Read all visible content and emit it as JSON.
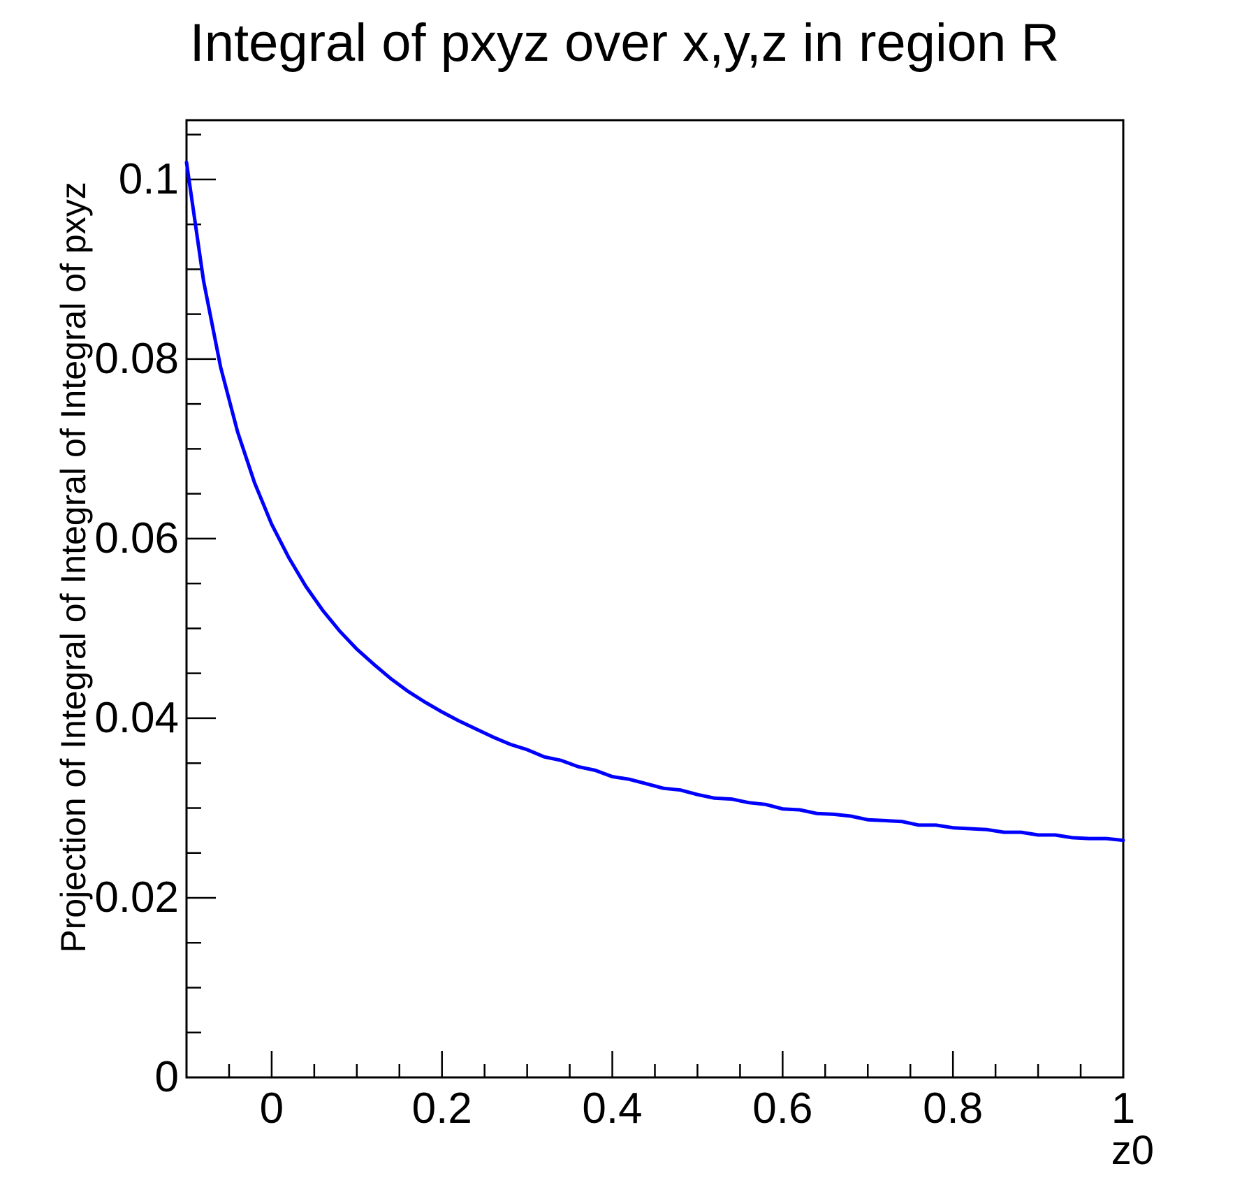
{
  "title": "Integral of pxyz over x,y,z in region R",
  "colors": {
    "line": "#0000ff",
    "axis": "#000000",
    "background": "#ffffff",
    "text": "#000000"
  },
  "axes": {
    "x": {
      "title": "z0",
      "range": [
        -0.1,
        1.0
      ],
      "minor_step": 0.05,
      "ticks": [
        {
          "value": 0.0,
          "label": "0"
        },
        {
          "value": 0.2,
          "label": "0.2"
        },
        {
          "value": 0.4,
          "label": "0.4"
        },
        {
          "value": 0.6,
          "label": "0.6"
        },
        {
          "value": 0.8,
          "label": "0.8"
        },
        {
          "value": 1.0,
          "label": "1"
        }
      ]
    },
    "y": {
      "title": "Projection of Integral of Integral of Integral of pxyz",
      "range": [
        0,
        0.1066
      ],
      "minor_step": 0.005,
      "ticks": [
        {
          "value": 0.0,
          "label": "0"
        },
        {
          "value": 0.02,
          "label": "0.02"
        },
        {
          "value": 0.04,
          "label": "0.04"
        },
        {
          "value": 0.06,
          "label": "0.06"
        },
        {
          "value": 0.08,
          "label": "0.08"
        },
        {
          "value": 0.1,
          "label": "0.1"
        }
      ]
    }
  },
  "chart_data": {
    "type": "line",
    "title": "Integral of pxyz over x,y,z in region R",
    "xlabel": "z0",
    "ylabel": "Projection of Integral of Integral of Integral of pxyz",
    "xlim": [
      -0.1,
      1.0
    ],
    "ylim": [
      0,
      0.1066
    ],
    "grid": false,
    "legend": false,
    "series": [
      {
        "name": "projection",
        "color": "#0000ff",
        "x": [
          -0.1,
          -0.08,
          -0.06,
          -0.04,
          -0.02,
          0.0,
          0.02,
          0.04,
          0.06,
          0.08,
          0.1,
          0.12,
          0.14,
          0.16,
          0.18,
          0.2,
          0.22,
          0.24,
          0.26,
          0.28,
          0.3,
          0.32,
          0.34,
          0.36,
          0.38,
          0.4,
          0.42,
          0.44,
          0.46,
          0.48,
          0.5,
          0.52,
          0.54,
          0.56,
          0.58,
          0.6,
          0.62,
          0.64,
          0.66,
          0.68,
          0.7,
          0.72,
          0.74,
          0.76,
          0.78,
          0.8,
          0.82,
          0.84,
          0.86,
          0.88,
          0.9,
          0.92,
          0.94,
          0.96,
          0.98,
          1.0
        ],
        "y": [
          0.1019,
          0.0887,
          0.0791,
          0.0719,
          0.0662,
          0.0616,
          0.0579,
          0.0547,
          0.052,
          0.0497,
          0.0477,
          0.046,
          0.0444,
          0.043,
          0.0418,
          0.0407,
          0.0397,
          0.0388,
          0.0379,
          0.0371,
          0.0365,
          0.0357,
          0.0353,
          0.0346,
          0.0342,
          0.0335,
          0.0332,
          0.0327,
          0.0322,
          0.032,
          0.0315,
          0.0311,
          0.031,
          0.0306,
          0.0304,
          0.0299,
          0.0298,
          0.0294,
          0.0293,
          0.0291,
          0.0287,
          0.0286,
          0.0285,
          0.0281,
          0.0281,
          0.0278,
          0.0277,
          0.0276,
          0.0273,
          0.0273,
          0.027,
          0.027,
          0.0267,
          0.0266,
          0.0266,
          0.0264
        ]
      }
    ]
  }
}
